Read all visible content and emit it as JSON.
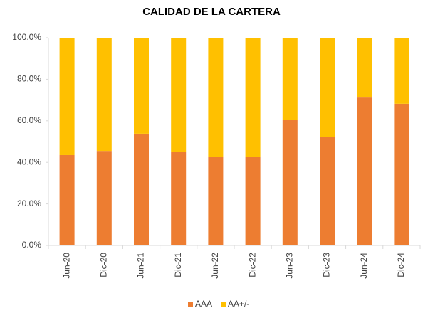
{
  "chart_data": {
    "type": "stacked_bar",
    "title": "CALIDAD DE LA CARTERA",
    "categories": [
      "Jun-20",
      "Dic-20",
      "Jun-21",
      "Dic-21",
      "Jun-22",
      "Dic-22",
      "Jun-23",
      "Dic-23",
      "Jun-24",
      "Dic-24"
    ],
    "series": [
      {
        "name": "AAA",
        "color": "#ED7D31",
        "values": [
          43.5,
          45.5,
          53.8,
          45.2,
          42.8,
          42.5,
          60.6,
          52.1,
          71.2,
          68.2
        ]
      },
      {
        "name": "AA+/-",
        "color": "#FFC000",
        "values": [
          56.5,
          54.5,
          46.2,
          54.8,
          57.2,
          57.5,
          39.4,
          47.9,
          28.8,
          31.8
        ]
      }
    ],
    "ylim": [
      0,
      100
    ],
    "yticks": [
      {
        "value": 0,
        "label": "0.0%"
      },
      {
        "value": 20,
        "label": "20.0%"
      },
      {
        "value": 40,
        "label": "40.0%"
      },
      {
        "value": 60,
        "label": "60.0%"
      },
      {
        "value": 80,
        "label": "80.0%"
      },
      {
        "value": 100,
        "label": "100.0%"
      }
    ],
    "grid": false,
    "legend": "bottom"
  }
}
